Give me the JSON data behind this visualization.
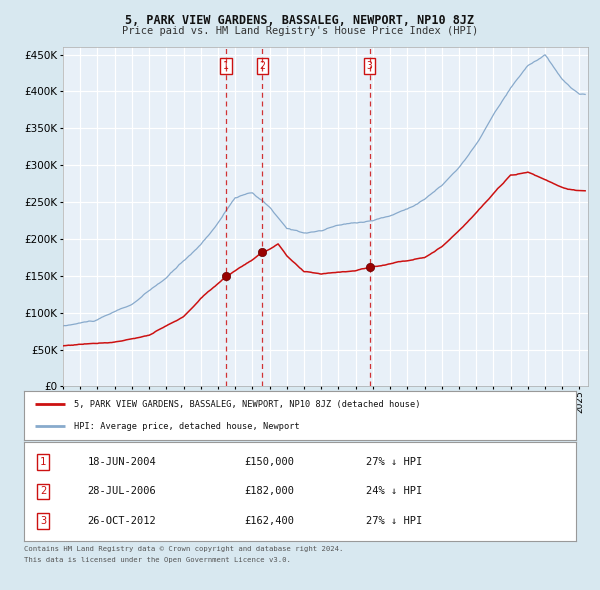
{
  "title": "5, PARK VIEW GARDENS, BASSALEG, NEWPORT, NP10 8JZ",
  "subtitle": "Price paid vs. HM Land Registry's House Price Index (HPI)",
  "legend_line1": "5, PARK VIEW GARDENS, BASSALEG, NEWPORT, NP10 8JZ (detached house)",
  "legend_line2": "HPI: Average price, detached house, Newport",
  "sale1_date": "18-JUN-2004",
  "sale1_price": 150000,
  "sale1_hpi": "27% ↓ HPI",
  "sale2_date": "28-JUL-2006",
  "sale2_price": 182000,
  "sale2_hpi": "24% ↓ HPI",
  "sale3_date": "26-OCT-2012",
  "sale3_price": 162400,
  "sale3_hpi": "27% ↓ HPI",
  "footer1": "Contains HM Land Registry data © Crown copyright and database right 2024.",
  "footer2": "This data is licensed under the Open Government Licence v3.0.",
  "hpi_line_color": "#88aacc",
  "property_line_color": "#cc1111",
  "background_color": "#d8e8f0",
  "plot_bg_color": "#e8f0f8",
  "grid_color": "#ffffff",
  "ylim": [
    0,
    460000
  ],
  "yticks": [
    0,
    50000,
    100000,
    150000,
    200000,
    250000,
    300000,
    350000,
    400000,
    450000
  ]
}
